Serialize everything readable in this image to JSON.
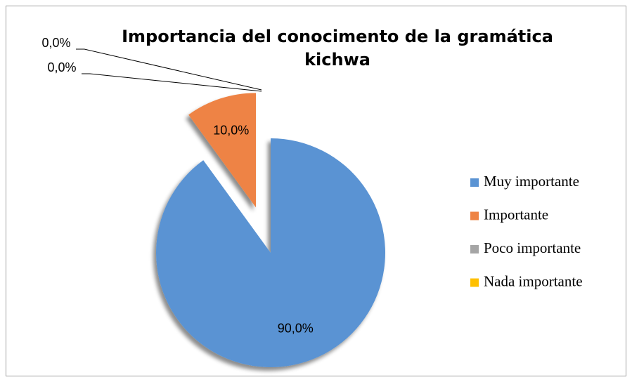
{
  "chart_data": {
    "type": "pie",
    "title": "Importancia del conocimento de la gramática kichwa",
    "categories": [
      "Muy importante",
      "Importante",
      "Poco importante",
      "Nada importante"
    ],
    "values": [
      90,
      10,
      0,
      0
    ],
    "value_labels": [
      "90,0%",
      "10,0%",
      "0,0%",
      "0,0%"
    ],
    "colors": [
      "#5a93d3",
      "#ee8344",
      "#a5a5a5",
      "#ffc000"
    ],
    "legend": "right"
  }
}
